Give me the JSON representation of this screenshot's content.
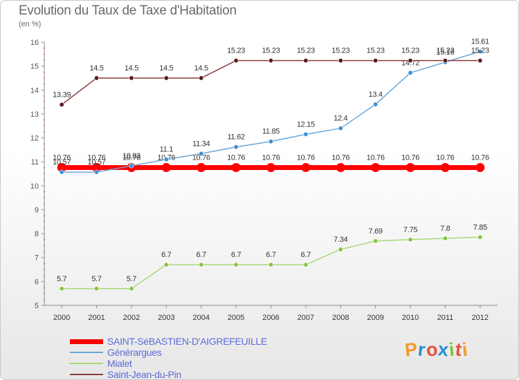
{
  "header": {
    "title": "Evolution du Taux de Taxe d'Habitation",
    "subtitle": "(en %)"
  },
  "logo": {
    "text": "Proxiti",
    "letter_colors": [
      "#f39a2c",
      "#2a8fd6",
      "#e8503a",
      "#2a8fd6",
      "#7ec23a",
      "#e8503a",
      "#f39a2c"
    ]
  },
  "chart_data": {
    "type": "line",
    "title": "Evolution du Taux de Taxe d'Habitation",
    "subtitle": "(en %)",
    "xlabel": "",
    "ylabel": "",
    "x": [
      "2000",
      "2001",
      "2002",
      "2003",
      "2004",
      "2005",
      "2006",
      "2007",
      "2008",
      "2009",
      "2010",
      "2011",
      "2012"
    ],
    "ylim": [
      5,
      16
    ],
    "yticks": [
      5,
      6,
      7,
      8,
      9,
      10,
      11,
      12,
      13,
      14,
      15,
      16
    ],
    "grid": false,
    "legend_position": "bottom-left",
    "series": [
      {
        "name": "SAINT-SéBASTIEN-D'AIGREFEUILLE",
        "color": "#ff0000",
        "thick": true,
        "values": [
          10.76,
          10.76,
          10.76,
          10.76,
          10.76,
          10.76,
          10.76,
          10.76,
          10.76,
          10.76,
          10.76,
          10.76,
          10.76
        ],
        "labels": [
          "10.76",
          "10.76",
          "10.76",
          "10.76",
          "10.76",
          "10.76",
          "10.76",
          "10.76",
          "10.76",
          "10.76",
          "10.76",
          "10.76",
          "10.76"
        ]
      },
      {
        "name": "Générargues",
        "color": "#6aa6d8",
        "marker": "#3d8fd0",
        "thick": false,
        "values": [
          10.57,
          10.57,
          10.83,
          11.1,
          11.34,
          11.62,
          11.85,
          12.15,
          12.4,
          13.4,
          14.72,
          15.16,
          15.61
        ],
        "labels": [
          "10.57",
          "10.57",
          "10.83",
          "11.1",
          "11.34",
          "11.62",
          "11.85",
          "12.15",
          "12.4",
          "13.4",
          "14.72",
          "15.16",
          "15.61"
        ]
      },
      {
        "name": "Mialet",
        "color": "#a8d87a",
        "marker": "#86c440",
        "thick": false,
        "values": [
          5.7,
          5.7,
          5.7,
          6.7,
          6.7,
          6.7,
          6.7,
          6.7,
          7.34,
          7.69,
          7.75,
          7.8,
          7.85
        ],
        "labels": [
          "5.7",
          "5.7",
          "5.7",
          "6.7",
          "6.7",
          "6.7",
          "6.7",
          "6.7",
          "7.34",
          "7.69",
          "7.75",
          "7.8",
          "7.85"
        ]
      },
      {
        "name": "Saint-Jean-du-Pin",
        "color": "#8a3a3a",
        "marker": "#5a1a1a",
        "thick": false,
        "values": [
          13.39,
          14.5,
          14.5,
          14.5,
          14.5,
          15.23,
          15.23,
          15.23,
          15.23,
          15.23,
          15.23,
          15.23,
          15.23
        ],
        "labels": [
          "13.39",
          "14.5",
          "14.5",
          "14.5",
          "14.5",
          "15.23",
          "15.23",
          "15.23",
          "15.23",
          "15.23",
          "15.23",
          "15.23",
          "15.23"
        ]
      }
    ]
  }
}
